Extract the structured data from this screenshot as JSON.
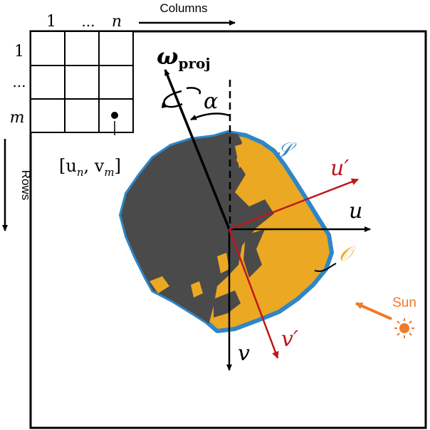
{
  "grid": {
    "col_labels": [
      "1",
      "...",
      "n"
    ],
    "row_labels": [
      "1",
      "...",
      "m"
    ],
    "pixel_label": "[u",
    "pixel_label_sub_n": "n",
    "pixel_label_mid": ", v",
    "pixel_label_sub_m": "m",
    "pixel_label_end": "]"
  },
  "axes_labels": {
    "columns": "Columns",
    "rows": "Rows"
  },
  "symbols": {
    "omega": "ω",
    "omega_sub": "proj",
    "alpha": "α",
    "u": "u",
    "v": "v",
    "u_prime": "u′",
    "v_prime": "v′",
    "S": "𝒮",
    "O": "𝒪",
    "sun": "Sun"
  },
  "colors": {
    "frame": "#000000",
    "asteroid_lit": "#EBA823",
    "asteroid_shadow": "#4A4A4A",
    "outline": "#2E86C8",
    "rotated_axes": "#C0161E",
    "sun": "#EE7A2D"
  }
}
